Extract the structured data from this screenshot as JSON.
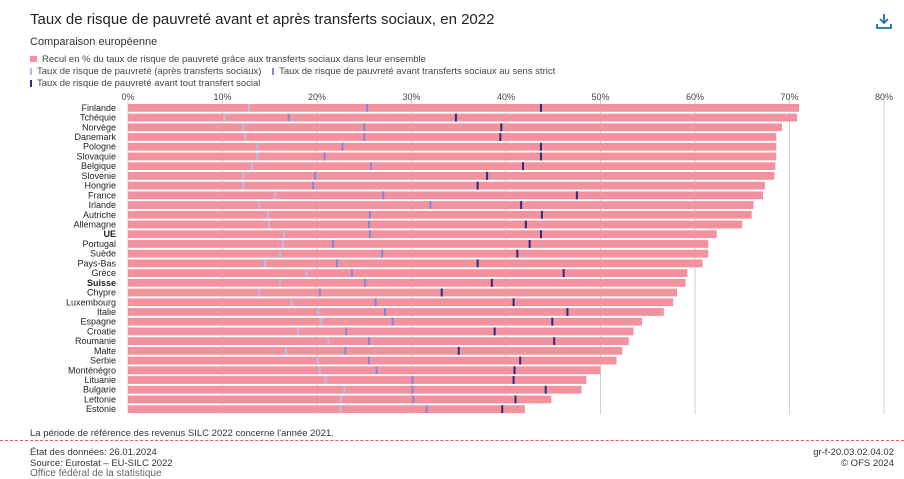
{
  "header": {
    "title": "Taux de risque de pauvreté avant et après transferts sociaux, en 2022",
    "subtitle": "Comparaison européenne",
    "download_icon": "download-icon"
  },
  "legend": {
    "bar": "Recul en % du taux de risque de pauvreté grâce aux transferts sociaux dans leur ensemble",
    "after": "Taux de risque de pauvreté (après transferts sociaux)",
    "strict": "Taux de risque de pauvreté avant transferts sociaux au sens strict",
    "before": "Taux de risque de pauvreté avant tout transfert social"
  },
  "colors": {
    "bar": "#f2929e",
    "after": "#b7bde8",
    "strict": "#7f8ad6",
    "before": "#252f7a",
    "grid": "#c7c7c7",
    "accent": "#1a6fb5"
  },
  "chart_data": {
    "type": "bar",
    "orientation": "horizontal",
    "title": "Taux de risque de pauvreté avant et après transferts sociaux, en 2022",
    "subtitle": "Comparaison européenne",
    "xlim": [
      0,
      80
    ],
    "tick_labels": [
      "0%",
      "10%",
      "20%",
      "30%",
      "40%",
      "50%",
      "60%",
      "70%",
      "80%"
    ],
    "grid": true,
    "legend_position": "top-left",
    "bold_categories": [
      "UE",
      "Suisse"
    ],
    "categories": [
      "Finlande",
      "Tchéquie",
      "Norvège",
      "Danemark",
      "Pologne",
      "Slovaquie",
      "Belgique",
      "Slovénie",
      "Hongrie",
      "France",
      "Irlande",
      "Autriche",
      "Allemagne",
      "UE",
      "Portugal",
      "Suède",
      "Pays-Bas",
      "Grèce",
      "Suisse",
      "Chypre",
      "Luxembourg",
      "Italie",
      "Espagne",
      "Croatie",
      "Roumanie",
      "Malte",
      "Serbie",
      "Monténégro",
      "Lituanie",
      "Bulgarie",
      "Lettonie",
      "Estonie"
    ],
    "series": [
      {
        "name": "Recul en % du taux de risque de pauvreté grâce aux transferts sociaux dans leur ensemble",
        "kind": "bar",
        "values": [
          71.0,
          70.8,
          69.2,
          68.6,
          68.6,
          68.6,
          68.5,
          68.4,
          67.4,
          67.2,
          66.2,
          66.0,
          65.0,
          62.3,
          61.4,
          61.4,
          60.8,
          59.2,
          59.0,
          58.1,
          57.7,
          56.7,
          54.4,
          53.5,
          53.0,
          52.3,
          51.7,
          50.0,
          48.5,
          48.0,
          44.8,
          42.0
        ]
      },
      {
        "name": "Taux de risque de pauvreté (après transferts sociaux)",
        "kind": "tick",
        "values": [
          12.8,
          10.2,
          12.2,
          12.4,
          13.7,
          13.7,
          13.1,
          12.2,
          12.2,
          15.6,
          13.9,
          14.8,
          14.9,
          16.5,
          16.4,
          16.1,
          14.5,
          18.9,
          16.1,
          13.9,
          17.3,
          20.1,
          20.4,
          18.0,
          21.2,
          16.7,
          20.1,
          20.3,
          20.9,
          22.9,
          22.5,
          22.5
        ]
      },
      {
        "name": "Taux de risque de pauvreté avant transferts sociaux au sens strict",
        "kind": "tick",
        "values": [
          25.3,
          17.0,
          25.0,
          25.0,
          22.7,
          20.8,
          25.7,
          19.8,
          19.6,
          27.0,
          32.0,
          25.6,
          25.5,
          25.6,
          21.7,
          26.9,
          22.1,
          23.7,
          25.1,
          20.3,
          26.2,
          27.2,
          28.0,
          23.1,
          25.5,
          23.0,
          25.5,
          26.3,
          30.1,
          30.1,
          30.2,
          31.6
        ]
      },
      {
        "name": "Taux de risque de pauvreté avant tout transfert social",
        "kind": "tick",
        "values": [
          43.7,
          34.7,
          39.5,
          39.4,
          43.7,
          43.7,
          41.8,
          38.0,
          37.0,
          47.5,
          41.6,
          43.8,
          42.1,
          43.7,
          42.5,
          41.2,
          37.0,
          46.1,
          38.5,
          33.2,
          40.8,
          46.5,
          44.9,
          38.8,
          45.1,
          35.0,
          41.5,
          40.9,
          40.8,
          44.2,
          41.0,
          39.6
        ]
      }
    ]
  },
  "note": "La période de référence des revenus SILC 2022 concerne l'année 2021.",
  "footer": {
    "date": "État des données: 26.01.2024",
    "source": "Source: Eurostat – EU-SILC 2022",
    "code": "gr-f-20.03.02.04.02",
    "copyright": "© OFS 2024",
    "office": "Office fédéral de la statistique"
  }
}
